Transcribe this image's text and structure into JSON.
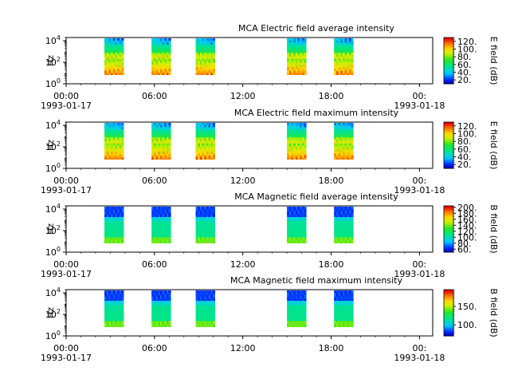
{
  "chart_data": [
    {
      "type": "heatmap",
      "title": "MCA  Electric field average intensity",
      "ylabel": "Hz",
      "y_scale": "log",
      "ylim": [
        1,
        20000
      ],
      "y_ticks": [
        {
          "base": "10",
          "exp": "0"
        },
        {
          "base": "10",
          "exp": "2"
        },
        {
          "base": "10",
          "exp": "4"
        }
      ],
      "x_ticks": [
        "00:00",
        "06:00",
        "12:00",
        "18:00",
        "00:"
      ],
      "x_dates": [
        "1993-01-17",
        "1993-01-18"
      ],
      "xlim_hours": [
        0,
        24.9
      ],
      "colorbar_label": "E field (dB)",
      "colorbar_range": [
        10,
        130
      ],
      "colorbar_ticks": [
        "20.",
        "40.",
        "60.",
        "80.",
        "100.",
        "120."
      ],
      "colormap": "rainbow-spectral",
      "kind": "electric",
      "data_blocks_hours": [
        [
          2.6,
          3.9
        ],
        [
          5.8,
          7.1
        ],
        [
          8.8,
          10.1
        ],
        [
          15.0,
          16.3
        ],
        [
          18.2,
          19.5
        ]
      ]
    },
    {
      "type": "heatmap",
      "title": "MCA  Electric field maximum intensity",
      "ylabel": "Hz",
      "y_scale": "log",
      "ylim": [
        1,
        20000
      ],
      "y_ticks": [
        {
          "base": "10",
          "exp": "0"
        },
        {
          "base": "10",
          "exp": "2"
        },
        {
          "base": "10",
          "exp": "4"
        }
      ],
      "x_ticks": [
        "00:00",
        "06:00",
        "12:00",
        "18:00",
        "00:"
      ],
      "x_dates": [
        "1993-01-17",
        "1993-01-18"
      ],
      "xlim_hours": [
        0,
        24.9
      ],
      "colorbar_label": "E field (dB)",
      "colorbar_range": [
        10,
        130
      ],
      "colorbar_ticks": [
        "20.",
        "40.",
        "60.",
        "80.",
        "100.",
        "120."
      ],
      "colormap": "rainbow-spectral",
      "kind": "electric",
      "data_blocks_hours": [
        [
          2.6,
          3.9
        ],
        [
          5.8,
          7.1
        ],
        [
          8.8,
          10.1
        ],
        [
          15.0,
          16.3
        ],
        [
          18.2,
          19.5
        ]
      ]
    },
    {
      "type": "heatmap",
      "title": "MCA  Magnetic field average intensity",
      "ylabel": "Hz",
      "y_scale": "log",
      "ylim": [
        1,
        20000
      ],
      "y_ticks": [
        {
          "base": "10",
          "exp": "0"
        },
        {
          "base": "10",
          "exp": "2"
        },
        {
          "base": "10",
          "exp": "4"
        }
      ],
      "x_ticks": [
        "00:00",
        "06:00",
        "12:00",
        "18:00",
        "00:"
      ],
      "x_dates": [
        "1993-01-17",
        "1993-01-18"
      ],
      "xlim_hours": [
        0,
        24.9
      ],
      "colorbar_label": "B field (dB)",
      "colorbar_range": [
        50,
        205
      ],
      "colorbar_ticks": [
        "60.",
        "80.",
        "100.",
        "120.",
        "140.",
        "160.",
        "180.",
        "200."
      ],
      "colormap": "rainbow-spectral",
      "kind": "magnetic",
      "data_blocks_hours": [
        [
          2.6,
          3.9
        ],
        [
          5.8,
          7.1
        ],
        [
          8.8,
          10.1
        ],
        [
          15.0,
          16.3
        ],
        [
          18.2,
          19.5
        ]
      ]
    },
    {
      "type": "heatmap",
      "title": "MCA  Magnetic field maximum intensity",
      "ylabel": "Hz",
      "y_scale": "log",
      "ylim": [
        1,
        20000
      ],
      "y_ticks": [
        {
          "base": "10",
          "exp": "0"
        },
        {
          "base": "10",
          "exp": "2"
        },
        {
          "base": "10",
          "exp": "4"
        }
      ],
      "x_ticks": [
        "00:00",
        "06:00",
        "12:00",
        "18:00",
        "00:"
      ],
      "x_dates": [
        "1993-01-17",
        "1993-01-18"
      ],
      "xlim_hours": [
        0,
        24.9
      ],
      "colorbar_label": "B field (dB)",
      "colorbar_range": [
        70,
        195
      ],
      "colorbar_ticks": [
        "100.",
        "150."
      ],
      "colormap": "rainbow-spectral",
      "kind": "magnetic",
      "data_blocks_hours": [
        [
          2.6,
          3.9
        ],
        [
          5.8,
          7.1
        ],
        [
          8.8,
          10.1
        ],
        [
          15.0,
          16.3
        ],
        [
          18.2,
          19.5
        ]
      ]
    }
  ]
}
